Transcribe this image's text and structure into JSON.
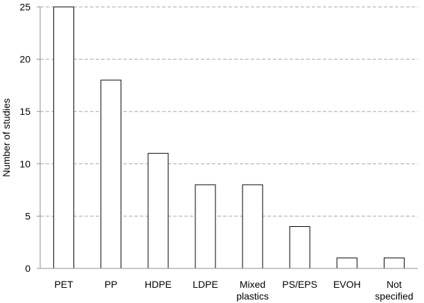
{
  "chart_data": {
    "type": "bar",
    "title": "",
    "xlabel": "",
    "ylabel": "Number of studies",
    "categories": [
      [
        "PET"
      ],
      [
        "PP"
      ],
      [
        "HDPE"
      ],
      [
        "LDPE"
      ],
      [
        "Mixed",
        "plastics"
      ],
      [
        "PS/EPS"
      ],
      [
        "EVOH"
      ],
      [
        "Not",
        "specified"
      ]
    ],
    "values": [
      25,
      18,
      11,
      8,
      8,
      4,
      1,
      1
    ],
    "ylim": [
      0,
      25
    ],
    "yticks": [
      0,
      5,
      10,
      15,
      20,
      25
    ],
    "grid": true,
    "legend": "none",
    "colors": {
      "bar_fill": "#ffffff",
      "bar_stroke": "#000000",
      "grid": "#a6a6a6",
      "axis": "#8c8c8c"
    }
  }
}
